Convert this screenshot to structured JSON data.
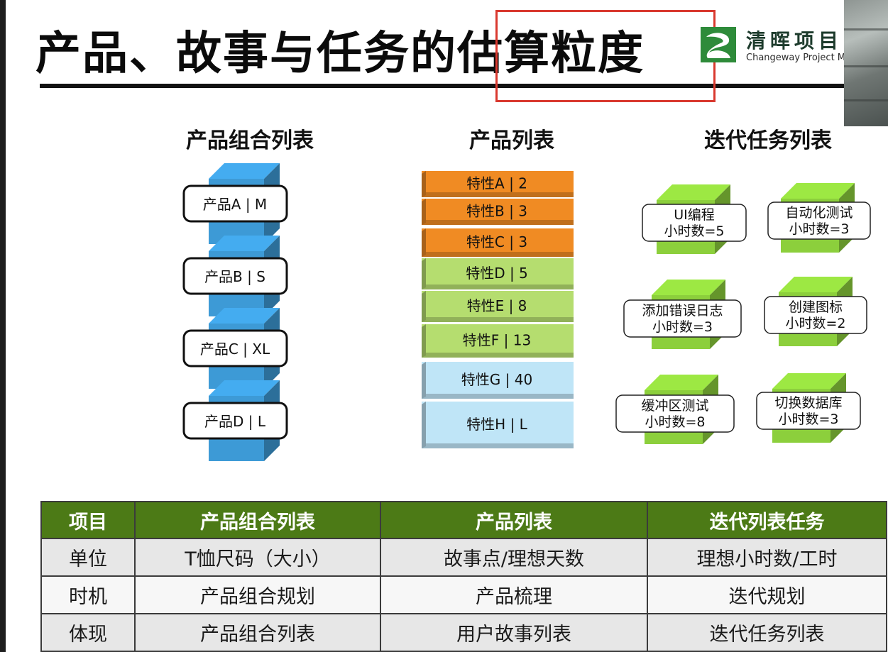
{
  "slide": {
    "title": "产品、故事与任务的估算粒度",
    "logo_cn": "清晖项目",
    "logo_en": "Changeway Project Ma"
  },
  "colors": {
    "blue_block": "#3d9ad6",
    "orange_block": "#f08b23",
    "green_block": "#b5dd6f",
    "lightblue_block": "#bfe5f7",
    "task_cube": "#8ccf3c",
    "table_header": "#4c7a16",
    "highlight": "#d9392f"
  },
  "columns": {
    "portfolio": {
      "heading": "产品组合列表",
      "items": [
        "产品A | M",
        "产品B | S",
        "产品C | XL",
        "产品D | L"
      ]
    },
    "backlog": {
      "heading": "产品列表",
      "items": [
        {
          "label": "特性A | 2",
          "color": "orange"
        },
        {
          "label": "特性B | 3",
          "color": "orange"
        },
        {
          "label": "特性C | 3",
          "color": "orange"
        },
        {
          "label": "特性D | 5",
          "color": "green"
        },
        {
          "label": "特性E | 8",
          "color": "green"
        },
        {
          "label": "特性F | 13",
          "color": "green"
        },
        {
          "label": "特性G | 40",
          "color": "lightblue"
        },
        {
          "label": "特性H | L",
          "color": "lightblue"
        }
      ]
    },
    "sprint": {
      "heading": "迭代任务列表",
      "items": [
        {
          "line1": "UI编程",
          "line2": "小时数=5"
        },
        {
          "line1": "自动化测试",
          "line2": "小时数=3"
        },
        {
          "line1": "添加错误日志",
          "line2": "小时数=3"
        },
        {
          "line1": "创建图标",
          "line2": "小时数=2"
        },
        {
          "line1": "缓冲区测试",
          "line2": "小时数=8"
        },
        {
          "line1": "切换数据库",
          "line2": "小时数=3"
        }
      ]
    }
  },
  "table": {
    "headers": [
      "项目",
      "产品组合列表",
      "产品列表",
      "迭代列表任务"
    ],
    "rows": [
      [
        "单位",
        "T恤尺码（大小）",
        "故事点/理想天数",
        "理想小时数/工时"
      ],
      [
        "时机",
        "产品组合规划",
        "产品梳理",
        "迭代规划"
      ],
      [
        "体现",
        "产品组合列表",
        "用户故事列表",
        "迭代任务列表"
      ]
    ]
  }
}
